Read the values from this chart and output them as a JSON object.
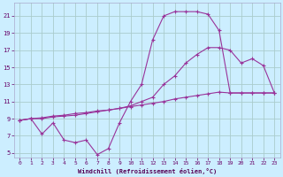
{
  "xlabel": "Windchill (Refroidissement éolien,°C)",
  "background_color": "#cceeff",
  "grid_color": "#aacccc",
  "line_color": "#993399",
  "xlim": [
    -0.5,
    23.5
  ],
  "ylim": [
    4.5,
    22.5
  ],
  "xticks": [
    0,
    1,
    2,
    3,
    4,
    5,
    6,
    7,
    8,
    9,
    10,
    11,
    12,
    13,
    14,
    15,
    16,
    17,
    18,
    19,
    20,
    21,
    22,
    23
  ],
  "yticks": [
    5,
    7,
    9,
    11,
    13,
    15,
    17,
    19,
    21
  ],
  "line1_x": [
    0,
    1,
    2,
    3,
    4,
    5,
    6,
    7,
    8,
    9,
    10,
    11,
    12,
    13,
    14,
    15,
    16,
    17,
    18,
    19,
    20,
    21,
    22,
    23
  ],
  "line1_y": [
    8.8,
    9.0,
    7.2,
    8.5,
    6.5,
    6.2,
    6.5,
    4.8,
    5.5,
    8.5,
    11.0,
    13.0,
    18.2,
    21.0,
    21.5,
    21.5,
    21.5,
    21.2,
    19.3,
    12.0,
    12.0,
    12.0,
    12.0,
    12.0
  ],
  "line2_x": [
    0,
    1,
    2,
    3,
    4,
    5,
    6,
    7,
    8,
    9,
    10,
    11,
    12,
    13,
    14,
    15,
    16,
    17,
    18,
    19,
    20,
    21,
    22,
    23
  ],
  "line2_y": [
    8.8,
    9.0,
    9.1,
    9.3,
    9.4,
    9.6,
    9.7,
    9.9,
    10.0,
    10.2,
    10.4,
    10.6,
    10.8,
    11.0,
    11.3,
    11.5,
    11.7,
    11.9,
    12.1,
    12.0,
    12.0,
    12.0,
    12.0,
    12.0
  ],
  "line3_x": [
    0,
    1,
    2,
    3,
    4,
    5,
    6,
    7,
    8,
    9,
    10,
    11,
    12,
    13,
    14,
    15,
    16,
    17,
    18,
    19,
    20,
    21,
    22,
    23
  ],
  "line3_y": [
    8.8,
    9.0,
    9.0,
    9.2,
    9.3,
    9.4,
    9.6,
    9.8,
    10.0,
    10.2,
    10.5,
    11.0,
    11.5,
    13.0,
    14.0,
    15.5,
    16.5,
    17.3,
    17.3,
    17.0,
    15.5,
    16.0,
    15.2,
    12.0
  ]
}
